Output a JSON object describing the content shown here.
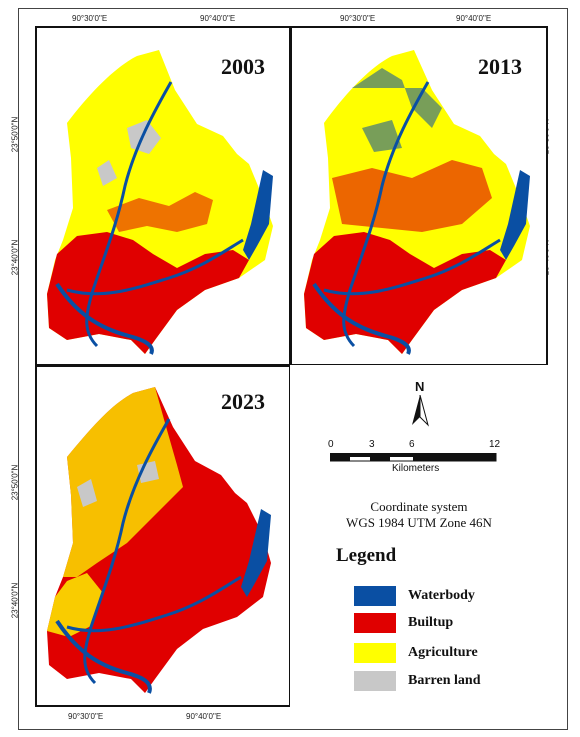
{
  "coords": {
    "top_left": "90°30'0\"E",
    "top_mid": "90°40'0\"E",
    "top_right_left": "90°30'0\"E",
    "top_right_mid": "90°40'0\"E",
    "bottom_left": "90°30'0\"E",
    "bottom_mid": "90°40'0\"E",
    "lat_50": "23°50'0\"N",
    "lat_40": "23°40'0\"N"
  },
  "panels": {
    "p2003": "2003",
    "p2013": "2013",
    "p2023": "2023"
  },
  "north_arrow": "N",
  "scale": {
    "ticks": [
      "0",
      "3",
      "6",
      "12"
    ],
    "unit": "Kilometers"
  },
  "coordinate_system": {
    "line1": "Coordinate system",
    "line2": "WGS 1984 UTM Zone 46N"
  },
  "legend": {
    "title": "Legend",
    "items": [
      {
        "label": "Waterbody",
        "color": "#0a4fa3"
      },
      {
        "label": "Builtup",
        "color": "#e00000"
      },
      {
        "label": "Agriculture",
        "color": "#ffff00"
      },
      {
        "label": "Barren land",
        "color": "#c8c8c8"
      }
    ]
  },
  "colors": {
    "water": "#0a4fa3",
    "builtup": "#e00000",
    "agriculture": "#ffff00",
    "barren": "#c8c8c8"
  }
}
